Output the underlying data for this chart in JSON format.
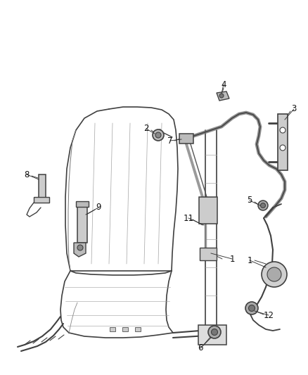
{
  "bg_color": "#ffffff",
  "line_color": "#404040",
  "label_color": "#111111",
  "figsize": [
    4.38,
    5.33
  ],
  "dpi": 100,
  "lw_main": 1.1,
  "lw_thin": 0.6,
  "lw_thick": 1.8
}
